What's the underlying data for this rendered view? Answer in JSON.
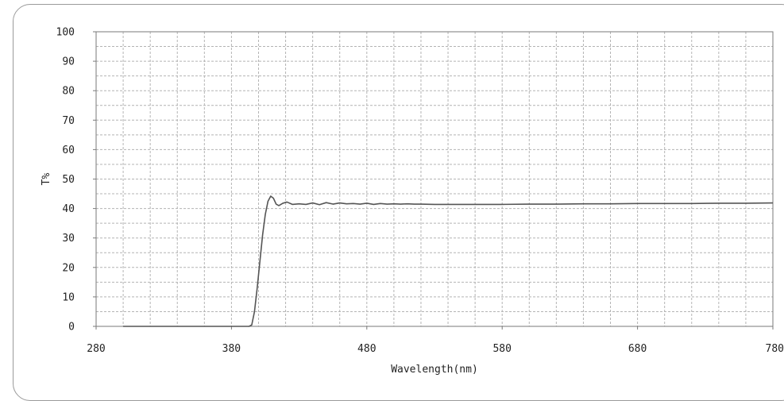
{
  "chart_data": {
    "type": "line",
    "title": "",
    "xlabel": "Wavelength(nm)",
    "ylabel": "T%",
    "xlim": [
      280,
      780
    ],
    "ylim": [
      0,
      100
    ],
    "x_ticks": [
      280,
      380,
      480,
      580,
      680,
      780
    ],
    "y_ticks": [
      0,
      10,
      20,
      30,
      40,
      50,
      60,
      70,
      80,
      90,
      100
    ],
    "x_minor_step": 20,
    "y_minor_step": 5,
    "grid": true,
    "legend": "none",
    "line_color": "#555555",
    "grid_color": "#b4b4b4",
    "series": [
      {
        "x": [
          300,
          320,
          340,
          360,
          380,
          390,
          393,
          395,
          397,
          399,
          401,
          403,
          405,
          407,
          409,
          411,
          413,
          415,
          418,
          421,
          425,
          430,
          435,
          440,
          445,
          450,
          455,
          460,
          465,
          470,
          475,
          480,
          485,
          490,
          495,
          500,
          505,
          510,
          515,
          520,
          530,
          540,
          560,
          580,
          600,
          620,
          640,
          660,
          680,
          700,
          720,
          740,
          760,
          780
        ],
        "y": [
          0,
          0,
          0,
          0,
          0,
          0,
          0,
          0.5,
          5,
          13,
          22,
          31,
          38,
          42.5,
          44.2,
          43.5,
          41.5,
          41.0,
          41.8,
          42.2,
          41.4,
          41.6,
          41.4,
          41.9,
          41.3,
          42.0,
          41.5,
          41.9,
          41.6,
          41.7,
          41.5,
          41.8,
          41.4,
          41.7,
          41.5,
          41.6,
          41.5,
          41.6,
          41.5,
          41.5,
          41.4,
          41.4,
          41.4,
          41.4,
          41.5,
          41.5,
          41.6,
          41.6,
          41.7,
          41.7,
          41.7,
          41.8,
          41.8,
          41.9
        ]
      }
    ]
  }
}
